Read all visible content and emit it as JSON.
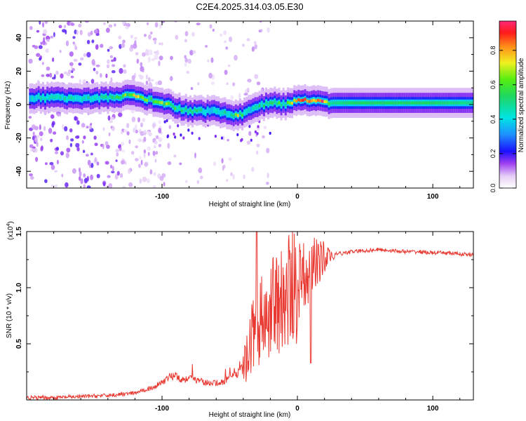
{
  "title": "C2E4.2025.314.03.05.E30",
  "chart_data": [
    {
      "type": "heatmap",
      "xlabel": "Height of straight line (km)",
      "ylabel": "Frequency (Hz)",
      "xlim": [
        -200,
        130
      ],
      "ylim": [
        -50,
        50
      ],
      "xticks": [
        -100,
        0,
        100
      ],
      "xtick_labels": [
        "-100",
        "0",
        "100"
      ],
      "yticks": [
        -40,
        -20,
        0,
        20,
        40
      ],
      "ytick_labels": [
        "-40",
        "-20",
        "0",
        "20",
        "40"
      ],
      "colorbar": {
        "label": "Normalized spectral amplitude",
        "range": [
          0,
          0.97
        ],
        "ticks": [
          0.0,
          0.2,
          0.4,
          0.6,
          0.8
        ],
        "tick_labels": [
          "0.0",
          "0.2",
          "0.4",
          "0.6",
          "0.8"
        ]
      },
      "ridge": {
        "x": [
          -198,
          -180,
          -160,
          -140,
          -130,
          -120,
          -110,
          -100,
          -90,
          -80,
          -70,
          -60,
          -50,
          -45,
          -40,
          -35,
          -30,
          -25,
          -20,
          -15,
          -10,
          -5,
          0,
          5,
          10,
          15,
          20,
          25,
          40,
          60,
          80,
          100,
          130
        ],
        "frequency": [
          4,
          4,
          4,
          4,
          5,
          5,
          3,
          1,
          -2,
          -4,
          -4,
          -4,
          -6,
          -7,
          -5,
          -3,
          -1,
          0,
          1,
          1,
          0,
          1,
          3,
          3,
          2,
          2,
          1,
          1,
          1,
          1,
          1,
          1,
          1
        ],
        "amplitude": [
          0.45,
          0.45,
          0.5,
          0.5,
          0.6,
          0.75,
          0.6,
          0.7,
          0.55,
          0.55,
          0.5,
          0.45,
          0.5,
          0.75,
          0.5,
          0.4,
          0.5,
          0.55,
          0.65,
          0.6,
          0.5,
          0.7,
          0.9,
          0.9,
          0.85,
          0.9,
          0.95,
          0.5,
          0.55,
          0.55,
          0.55,
          0.55,
          0.5
        ]
      }
    },
    {
      "type": "line",
      "xlabel": "Height of straight line (km)",
      "ylabel": "SNR (10 * v/v)",
      "yscale_label": "(x10",
      "yscale_exponent": "4",
      "yscale_close": ")",
      "xlim": [
        -200,
        130
      ],
      "ylim": [
        0,
        1.5
      ],
      "xticks": [
        -100,
        0,
        100
      ],
      "xtick_labels": [
        "-100",
        "0",
        "100"
      ],
      "yticks": [
        0.5,
        1.0,
        1.5
      ],
      "ytick_labels": [
        "0.5",
        "1.0",
        "1.5"
      ],
      "series": [
        {
          "name": "SNR",
          "color": "#e83a32",
          "x": [
            -200,
            -180,
            -160,
            -140,
            -130,
            -120,
            -115,
            -110,
            -105,
            -100,
            -95,
            -90,
            -85,
            -80,
            -75,
            -70,
            -65,
            -60,
            -55,
            -50,
            -45,
            -40,
            -38,
            -36,
            -34,
            -32,
            -30,
            -28,
            -26,
            -24,
            -22,
            -20,
            -18,
            -16,
            -14,
            -12,
            -10,
            -8,
            -6,
            -4,
            -2,
            0,
            2,
            4,
            6,
            8,
            10,
            12,
            14,
            16,
            18,
            20,
            25,
            30,
            40,
            50,
            60,
            70,
            80,
            90,
            100,
            110,
            120,
            130
          ],
          "values": [
            0.02,
            0.02,
            0.03,
            0.04,
            0.05,
            0.06,
            0.08,
            0.1,
            0.12,
            0.16,
            0.2,
            0.22,
            0.18,
            0.2,
            0.18,
            0.16,
            0.15,
            0.15,
            0.16,
            0.2,
            0.24,
            0.28,
            0.35,
            0.45,
            0.55,
            0.6,
            0.7,
            0.68,
            0.72,
            0.72,
            0.76,
            0.78,
            0.84,
            0.86,
            0.88,
            0.9,
            0.93,
            0.94,
            0.98,
            1.02,
            1.04,
            1.06,
            1.06,
            1.1,
            1.12,
            1.15,
            1.18,
            1.2,
            1.22,
            1.24,
            1.25,
            1.27,
            1.28,
            1.3,
            1.32,
            1.33,
            1.34,
            1.33,
            1.32,
            1.32,
            1.31,
            1.31,
            1.3,
            1.29
          ]
        }
      ]
    }
  ]
}
